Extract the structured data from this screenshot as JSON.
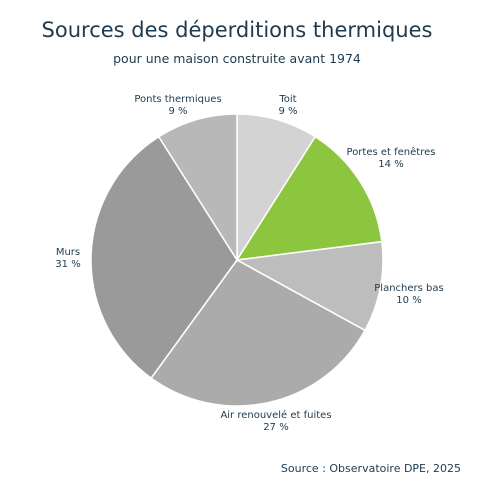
{
  "chart_data": {
    "type": "pie",
    "title": "Sources des déperditions thermiques",
    "subtitle": "pour une maison construite avant 1974",
    "source": "Source : Observatoire DPE, 2025",
    "slices": [
      {
        "label": "Toit",
        "value": 9,
        "value_label": "9 %",
        "color": "#d3d3d3"
      },
      {
        "label": "Portes et fenêtres",
        "value": 14,
        "value_label": "14 %",
        "color": "#8cc63f"
      },
      {
        "label": "Planchers bas",
        "value": 10,
        "value_label": "10 %",
        "color": "#bdbdbd"
      },
      {
        "label": "Air renouvelé et fuites",
        "value": 27,
        "value_label": "27 %",
        "color": "#ababab"
      },
      {
        "label": "Murs",
        "value": 31,
        "value_label": "31 %",
        "color": "#9a9a9a"
      },
      {
        "label": "Ponts thermiques",
        "value": 9,
        "value_label": "9 %",
        "color": "#b8b8b8"
      }
    ]
  }
}
